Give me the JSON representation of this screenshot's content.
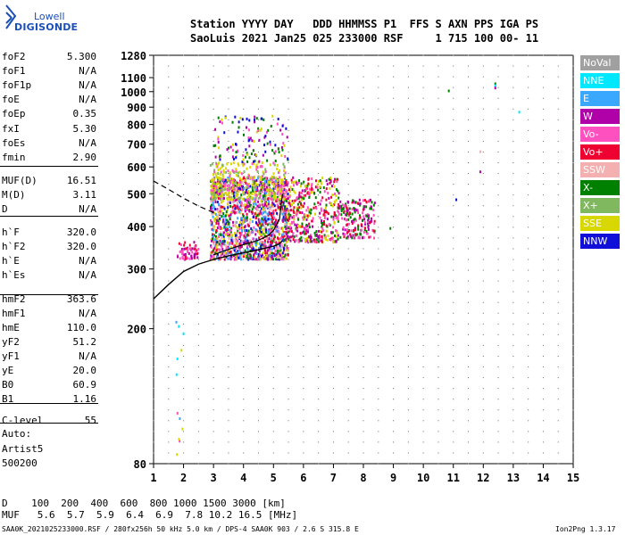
{
  "logo": {
    "top": "Lowell",
    "bottom": "DIGISONDE"
  },
  "header": {
    "line1": "Station YYYY DAY   DDD HHMMSS P1  FFS S AXN PPS IGA PS",
    "line2": "SaoLuis 2021 Jan25 025 233000 RSF     1 715 100 00- 11"
  },
  "params": [
    {
      "name": "foF2",
      "value": "5.300"
    },
    {
      "name": "foF1",
      "value": "N/A"
    },
    {
      "name": "foF1p",
      "value": "N/A"
    },
    {
      "name": "foE",
      "value": "N/A"
    },
    {
      "name": "foEp",
      "value": "0.35"
    },
    {
      "name": "fxI",
      "value": "5.30"
    },
    {
      "name": "foEs",
      "value": "N/A"
    },
    {
      "name": "fmin",
      "value": "2.90"
    },
    {
      "name": "MUF(D)",
      "value": "16.51"
    },
    {
      "name": "M(D)",
      "value": "3.11"
    },
    {
      "name": "D",
      "value": "N/A"
    },
    {
      "name": "h`F",
      "value": "320.0"
    },
    {
      "name": "h`F2",
      "value": "320.0"
    },
    {
      "name": "h`E",
      "value": "N/A"
    },
    {
      "name": "h`Es",
      "value": "N/A"
    },
    {
      "name": "hmF2",
      "value": "363.6"
    },
    {
      "name": "hmF1",
      "value": "N/A"
    },
    {
      "name": "hmE",
      "value": "110.0"
    },
    {
      "name": "yF2",
      "value": "51.2"
    },
    {
      "name": "yF1",
      "value": "N/A"
    },
    {
      "name": "yE",
      "value": "20.0"
    },
    {
      "name": "B0",
      "value": "60.9"
    },
    {
      "name": "B1",
      "value": "1.16"
    },
    {
      "name": "C-level",
      "value": "55"
    }
  ],
  "auto": {
    "line1": "Auto:",
    "line2": "Artist5",
    "line3": "500200"
  },
  "legend": [
    {
      "label": "NoVal",
      "color": "#a0a0a0"
    },
    {
      "label": "NNE",
      "color": "#00e8ff"
    },
    {
      "label": "E",
      "color": "#3aa8ff"
    },
    {
      "label": "W",
      "color": "#b000a8"
    },
    {
      "label": "Vo-",
      "color": "#ff50c0"
    },
    {
      "label": "Vo+",
      "color": "#ee0030"
    },
    {
      "label": "SSW",
      "color": "#f4b0b0"
    },
    {
      "label": "X-",
      "color": "#008000"
    },
    {
      "label": "X+",
      "color": "#80b860"
    },
    {
      "label": "SSE",
      "color": "#d8d800"
    },
    {
      "label": "NNW",
      "color": "#1010d8"
    }
  ],
  "bottom": {
    "dist_line": "D    100  200  400  600  800 1000 1500 3000 [km]",
    "muf_line": "MUF   5.6  5.7  5.9  6.4  6.9  7.8 10.2 16.5 [MHz]"
  },
  "footer": {
    "left": "SAA0K_2021025233000.RSF / 280fx256h 50 kHz 5.0 km / DPS-4 SAA0K 903 / 2.6 S 315.8 E",
    "right": "Ion2Png 1.3.17"
  },
  "chart_data": {
    "type": "scatter",
    "x_ticks": [
      "1",
      "2",
      "3",
      "4",
      "5",
      "6",
      "7",
      "8",
      "9",
      "10",
      "11",
      "12",
      "13",
      "14",
      "15"
    ],
    "y_ticks": [
      "80",
      "200",
      "300",
      "400",
      "500",
      "600",
      "700",
      "800",
      "900",
      "1000",
      "1100",
      "1280"
    ],
    "xlim": [
      1,
      15
    ],
    "ylim": [
      80,
      1280
    ],
    "y_scale": "log",
    "profile": {
      "x": [
        1.0,
        1.5,
        2.0,
        2.5,
        3.0,
        3.5,
        4.0,
        4.5,
        5.0,
        5.2,
        5.3
      ],
      "y": [
        245,
        270,
        295,
        310,
        320,
        328,
        335,
        342,
        350,
        356,
        363.6
      ]
    },
    "profile_ext": {
      "x": [
        1.0,
        1.5,
        2.0,
        2.5,
        3.0
      ],
      "y": [
        545,
        515,
        485,
        460,
        440
      ]
    },
    "trace": {
      "x": [
        3.0,
        3.3,
        3.6,
        3.9,
        4.2,
        4.5,
        4.8,
        5.0,
        5.2,
        5.3
      ],
      "y": [
        330,
        338,
        345,
        352,
        358,
        365,
        375,
        390,
        420,
        500
      ]
    },
    "clusters": [
      {
        "x": [
          1.8,
          2.5
        ],
        "y": [
          320,
          360
        ],
        "n": 60,
        "colors": [
          "#ee0030",
          "#b000a8",
          "#ff50c0"
        ]
      },
      {
        "x": [
          2.9,
          5.5
        ],
        "y": [
          320,
          560
        ],
        "n": 1500,
        "colors": [
          "#ee0030",
          "#ff50c0",
          "#b000a8",
          "#d8d800",
          "#008000",
          "#1010d8",
          "#f4b0b0",
          "#3aa8ff"
        ]
      },
      {
        "x": [
          2.9,
          5.4
        ],
        "y": [
          480,
          620
        ],
        "n": 300,
        "colors": [
          "#d8d800",
          "#d8d800",
          "#80b860",
          "#ff50c0"
        ]
      },
      {
        "x": [
          3.0,
          5.5
        ],
        "y": [
          620,
          850
        ],
        "n": 120,
        "colors": [
          "#d8d800",
          "#008000",
          "#ff50c0",
          "#b000a8",
          "#1010d8"
        ]
      },
      {
        "x": [
          5.4,
          7.2
        ],
        "y": [
          360,
          560
        ],
        "n": 420,
        "colors": [
          "#ee0030",
          "#ff50c0",
          "#b000a8",
          "#d8d800",
          "#008000"
        ]
      },
      {
        "x": [
          7.2,
          8.4
        ],
        "y": [
          370,
          480
        ],
        "n": 180,
        "colors": [
          "#ee0030",
          "#ff50c0",
          "#b000a8",
          "#008000"
        ]
      },
      {
        "x": [
          1.7,
          2.0
        ],
        "y": [
          80,
          230
        ],
        "n": 12,
        "colors": [
          "#d8d800",
          "#3aa8ff",
          "#ff50c0",
          "#00e8ff"
        ]
      }
    ],
    "outliers": [
      {
        "x": 8.9,
        "y": 395,
        "color": "#008000"
      },
      {
        "x": 10.85,
        "y": 1005,
        "color": "#008000"
      },
      {
        "x": 12.4,
        "y": 1055,
        "color": "#008000"
      },
      {
        "x": 12.4,
        "y": 1040,
        "color": "#00e8ff"
      },
      {
        "x": 12.4,
        "y": 1025,
        "color": "#b000a8"
      },
      {
        "x": 13.2,
        "y": 870,
        "color": "#00e8ff"
      },
      {
        "x": 11.9,
        "y": 580,
        "color": "#b000a8"
      },
      {
        "x": 11.9,
        "y": 665,
        "color": "#f4b0b0"
      },
      {
        "x": 11.1,
        "y": 480,
        "color": "#1010d8"
      }
    ]
  }
}
